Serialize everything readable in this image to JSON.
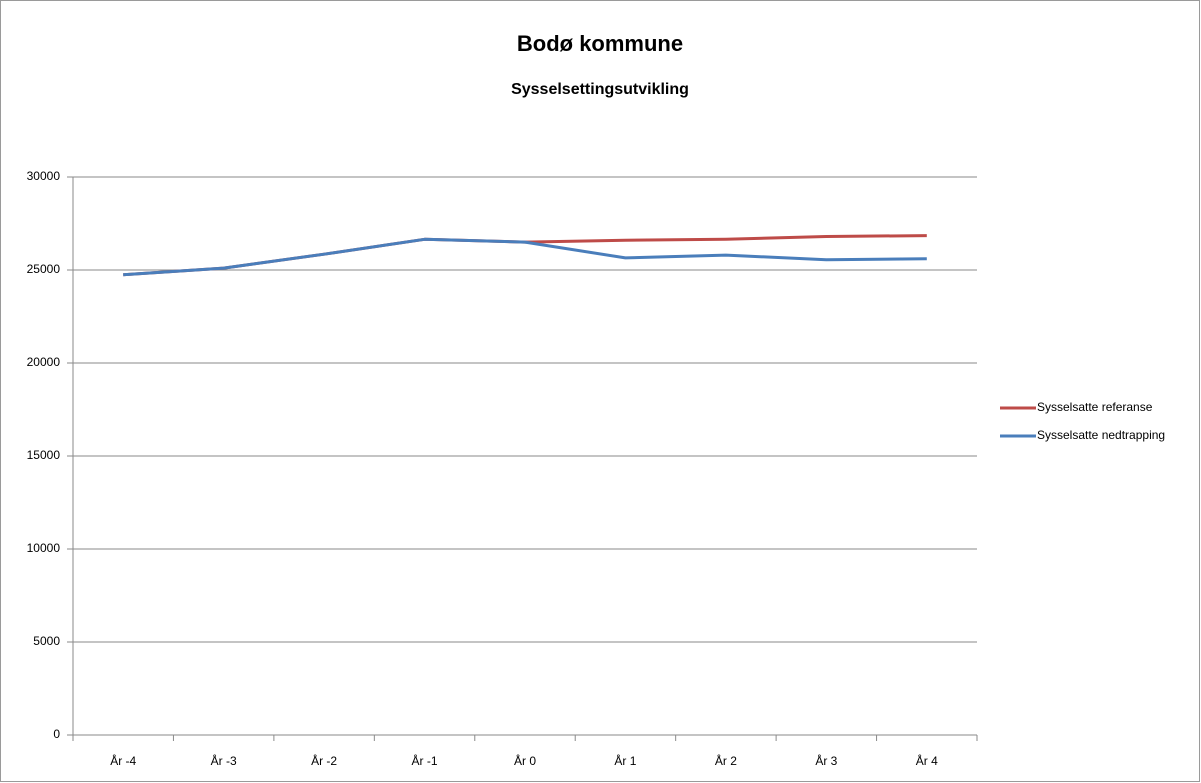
{
  "chart_data": {
    "type": "line",
    "title": "Bodø kommune",
    "subtitle": "Sysselsettingsutvikling",
    "categories": [
      "År -4",
      "År -3",
      "År -2",
      "År -1",
      "År 0",
      "År 1",
      "År 2",
      "År 3",
      "År 4"
    ],
    "series": [
      {
        "name": "Sysselsatte referanse",
        "color": "#be4b48",
        "values": [
          24750,
          25100,
          25850,
          26650,
          26500,
          26600,
          26650,
          26800,
          26850
        ]
      },
      {
        "name": "Sysselsatte nedtrapping",
        "color": "#4a7ebb",
        "values": [
          24750,
          25100,
          25850,
          26650,
          26500,
          25650,
          25800,
          25550,
          25600
        ]
      }
    ],
    "ylim": [
      0,
      30000
    ],
    "yticks": [
      0,
      5000,
      10000,
      15000,
      20000,
      25000,
      30000
    ],
    "grid": true,
    "legend": "right"
  }
}
